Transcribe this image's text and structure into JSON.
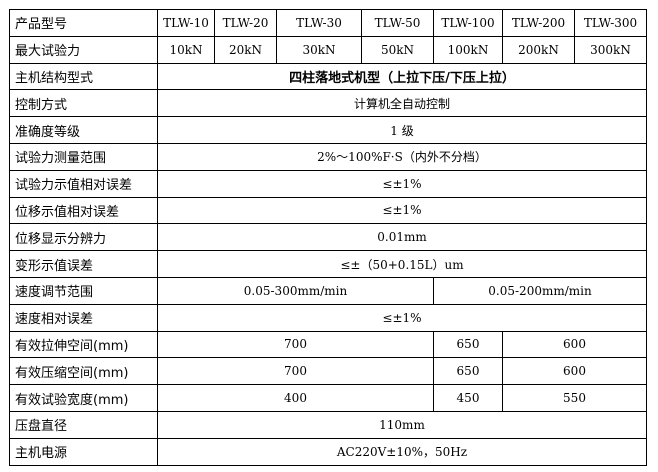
{
  "rows": {
    "model": {
      "label": "产品型号",
      "values": [
        "TLW-10",
        "TLW-20",
        "TLW-30",
        "TLW-50",
        "TLW-100",
        "TLW-200",
        "TLW-300"
      ]
    },
    "max_force": {
      "label": "最大试验力",
      "values": [
        "10kN",
        "20kN",
        "30kN",
        "50kN",
        "100kN",
        "200kN",
        "300kN"
      ]
    },
    "structure": {
      "label": "主机结构型式",
      "value": "四柱落地式机型（上拉下压/下压上拉）"
    },
    "control": {
      "label": "控制方式",
      "value": "计算机全自动控制"
    },
    "accuracy": {
      "label": "准确度等级",
      "value": "1 级"
    },
    "force_range": {
      "label": "试验力测量范围",
      "value": "2%～100%F·S（内外不分档）"
    },
    "force_error": {
      "label": "试验力示值相对误差",
      "value": "≤±1%"
    },
    "disp_error": {
      "label": "位移示值相对误差",
      "value": "≤±1%"
    },
    "disp_resolution": {
      "label": "位移显示分辨力",
      "value": "0.01mm"
    },
    "deform_error": {
      "label": "变形示值误差",
      "value": "≤±（50+0.15L）um"
    },
    "speed_range": {
      "label": "速度调节范围",
      "values": [
        "0.05-300mm/min",
        "0.05-200mm/min"
      ]
    },
    "speed_error": {
      "label": "速度相对误差",
      "value": "≤±1%"
    },
    "tensile_space": {
      "label": "有效拉伸空间(mm)",
      "values": [
        "700",
        "650",
        "600"
      ]
    },
    "compress_space": {
      "label": "有效压缩空间(mm)",
      "values": [
        "700",
        "650",
        "600"
      ]
    },
    "test_width": {
      "label": "有效试验宽度(mm)",
      "values": [
        "400",
        "450",
        "550"
      ]
    },
    "platen_diameter": {
      "label": "压盘直径",
      "value": "110mm"
    },
    "power": {
      "label": "主机电源",
      "value": "AC220V±10%，50Hz"
    }
  }
}
